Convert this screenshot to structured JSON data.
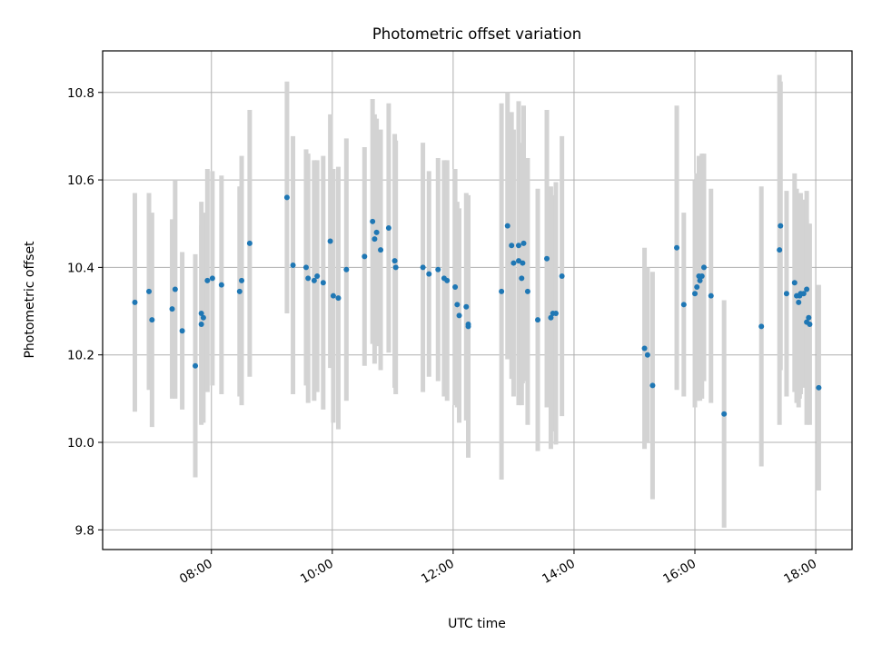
{
  "chart_data": {
    "type": "scatter",
    "title": "Photometric offset variation",
    "xlabel": "UTC time",
    "ylabel": "Photometric offset",
    "x_format": "HH:MM",
    "xlim": [
      "06:12",
      "18:36"
    ],
    "ylim": [
      9.755,
      10.895
    ],
    "x_ticks": [
      "08:00",
      "10:00",
      "12:00",
      "14:00",
      "16:00",
      "18:00"
    ],
    "y_ticks": [
      "9.8",
      "10.0",
      "10.2",
      "10.4",
      "10.6",
      "10.8"
    ],
    "grid": true,
    "colors": {
      "point": "#1f77b4",
      "errorbar": "#d3d3d3",
      "grid": "#b0b0b0"
    },
    "series": [
      {
        "x": [
          "06:44",
          "06:58",
          "07:01",
          "07:21",
          "07:24",
          "07:31",
          "07:44",
          "07:50",
          "07:50",
          "07:52",
          "07:56",
          "08:01",
          "08:10",
          "08:28",
          "08:30",
          "08:38",
          "09:15",
          "09:21",
          "09:34",
          "09:36",
          "09:42",
          "09:45",
          "09:51",
          "09:58",
          "10:01",
          "10:06",
          "10:14",
          "10:32",
          "10:40",
          "10:42",
          "10:44",
          "10:48",
          "10:56",
          "11:02",
          "11:03",
          "11:30",
          "11:36",
          "11:45",
          "11:51",
          "11:54",
          "12:02",
          "12:04",
          "12:06",
          "12:13",
          "12:15",
          "12:15",
          "12:48",
          "12:54",
          "12:58",
          "13:00",
          "13:05",
          "13:05",
          "13:08",
          "13:09",
          "13:10",
          "13:14",
          "13:24",
          "13:33",
          "13:37",
          "13:39",
          "13:42",
          "13:48",
          "15:10",
          "15:13",
          "15:18",
          "15:42",
          "15:49",
          "16:00",
          "16:02",
          "16:04",
          "16:05",
          "16:07",
          "16:09",
          "16:16",
          "16:29",
          "17:06",
          "17:24",
          "17:25",
          "17:31",
          "17:39",
          "17:41",
          "17:43",
          "17:44",
          "17:45",
          "17:48",
          "17:51",
          "17:51",
          "17:53",
          "17:54",
          "18:03"
        ],
        "y": [
          10.32,
          10.345,
          10.28,
          10.305,
          10.35,
          10.255,
          10.175,
          10.295,
          10.27,
          10.285,
          10.37,
          10.375,
          10.36,
          10.345,
          10.37,
          10.455,
          10.56,
          10.405,
          10.4,
          10.375,
          10.37,
          10.38,
          10.365,
          10.46,
          10.335,
          10.33,
          10.395,
          10.425,
          10.505,
          10.465,
          10.48,
          10.44,
          10.49,
          10.415,
          10.4,
          10.4,
          10.385,
          10.395,
          10.375,
          10.37,
          10.355,
          10.315,
          10.29,
          10.31,
          10.27,
          10.265,
          10.345,
          10.495,
          10.45,
          10.41,
          10.45,
          10.415,
          10.375,
          10.41,
          10.455,
          10.345,
          10.28,
          10.42,
          10.285,
          10.295,
          10.295,
          10.38,
          10.215,
          10.2,
          10.13,
          10.445,
          10.315,
          10.34,
          10.355,
          10.38,
          10.37,
          10.38,
          10.4,
          10.335,
          10.065,
          10.265,
          10.44,
          10.495,
          10.34,
          10.365,
          10.335,
          10.32,
          10.335,
          10.34,
          10.34,
          10.35,
          10.275,
          10.285,
          10.27,
          10.125
        ],
        "yerr": [
          0.25,
          0.225,
          0.245,
          0.205,
          0.25,
          0.18,
          0.255,
          0.255,
          0.225,
          0.24,
          0.255,
          0.245,
          0.25,
          0.24,
          0.285,
          0.305,
          0.265,
          0.295,
          0.27,
          0.285,
          0.275,
          0.265,
          0.29,
          0.29,
          0.29,
          0.3,
          0.3,
          0.25,
          0.28,
          0.285,
          0.26,
          0.275,
          0.285,
          0.29,
          0.29,
          0.285,
          0.235,
          0.255,
          0.27,
          0.275,
          0.27,
          0.235,
          0.245,
          0.26,
          0.275,
          0.3,
          0.43,
          0.305,
          0.305,
          0.305,
          0.33,
          0.33,
          0.29,
          0.275,
          0.315,
          0.305,
          0.3,
          0.34,
          0.3,
          0.27,
          0.3,
          0.32,
          0.23,
          0.2,
          0.26,
          0.325,
          0.21,
          0.26,
          0.26,
          0.275,
          0.275,
          0.28,
          0.26,
          0.245,
          0.26,
          0.32,
          0.4,
          0.33,
          0.235,
          0.25,
          0.245,
          0.24,
          0.235,
          0.23,
          0.215,
          0.225,
          0.235,
          0.215,
          0.23,
          0.235
        ]
      }
    ]
  }
}
